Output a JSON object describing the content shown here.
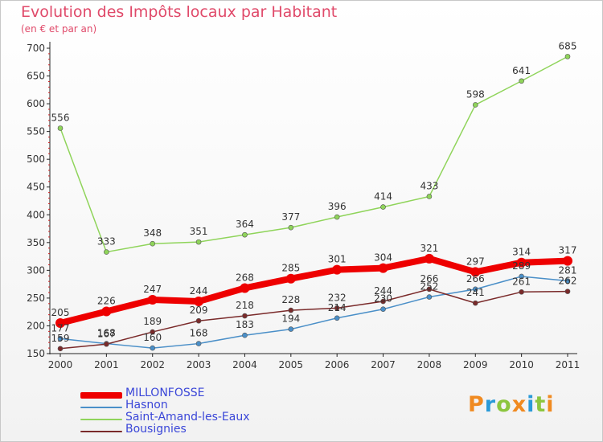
{
  "chart_data": {
    "type": "line",
    "title": "Evolution des Impôts locaux par Habitant",
    "subtitle": "(en € et par an)",
    "x": [
      "2000",
      "2001",
      "2002",
      "2003",
      "2004",
      "2005",
      "2006",
      "2007",
      "2008",
      "2009",
      "2010",
      "2011"
    ],
    "ylim": [
      150,
      700
    ],
    "yticks": [
      150,
      200,
      250,
      300,
      350,
      400,
      450,
      500,
      550,
      600,
      650,
      700
    ],
    "grid": false,
    "legend_position": "bottom-left",
    "series": [
      {
        "name": "MILLONFOSSE",
        "color": "#ee0000",
        "values": [
          205,
          226,
          247,
          244,
          268,
          285,
          301,
          304,
          321,
          297,
          314,
          317
        ]
      },
      {
        "name": "Hasnon",
        "color": "#4a8fc8",
        "values": [
          177,
          168,
          160,
          168,
          183,
          194,
          214,
          230,
          252,
          266,
          289,
          281
        ]
      },
      {
        "name": "Saint-Amand-les-Eaux",
        "color": "#8fd45a",
        "values": [
          556,
          333,
          348,
          351,
          364,
          377,
          396,
          414,
          433,
          598,
          641,
          685
        ]
      },
      {
        "name": "Bousignies",
        "color": "#7a2a2a",
        "values": [
          159,
          167,
          189,
          209,
          218,
          228,
          232,
          244,
          266,
          241,
          261,
          262
        ]
      }
    ]
  },
  "brand": {
    "text": "Proxiti",
    "letters": [
      "P",
      "r",
      "o",
      "x",
      "i",
      "t",
      "i"
    ],
    "colors": [
      "#f08a20",
      "#2a9ad8",
      "#8cc63f",
      "#f08a20",
      "#2a9ad8",
      "#8cc63f",
      "#f08a20"
    ]
  }
}
